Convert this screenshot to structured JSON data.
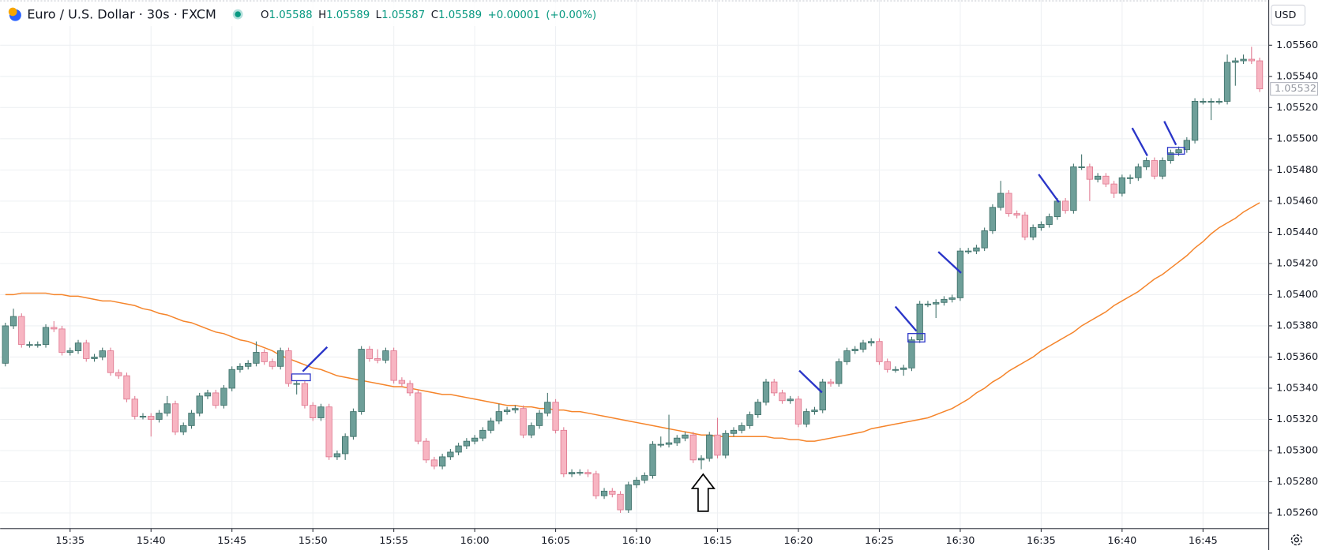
{
  "header": {
    "title": "Euro / U.S. Dollar · 30s · FXCM",
    "ohlc": [
      {
        "label": "O",
        "value": 1.05588
      },
      {
        "label": "H",
        "value": 1.05589
      },
      {
        "label": "L",
        "value": 1.05587
      },
      {
        "label": "C",
        "value": 1.05589
      }
    ],
    "change": "+0.00001",
    "change_pct": "(+0.00%)",
    "currency": "USD"
  },
  "chart_data": {
    "type": "candlestick",
    "up_color": "#6e9f99",
    "up_border": "#3f716a",
    "down_color": "#f7b5c2",
    "down_border": "#e07a91",
    "grid": true,
    "ylim": [
      1.0525,
      1.05589
    ],
    "yticks": [
      {
        "value": 1.0526,
        "label": "1.05260"
      },
      {
        "value": 1.0528,
        "label": "1.05280"
      },
      {
        "value": 1.053,
        "label": "1.05300"
      },
      {
        "value": 1.0532,
        "label": "1.05320"
      },
      {
        "value": 1.0534,
        "label": "1.05340"
      },
      {
        "value": 1.0536,
        "label": "1.05360"
      },
      {
        "value": 1.0538,
        "label": "1.05380"
      },
      {
        "value": 1.054,
        "label": "1.05400"
      },
      {
        "value": 1.0542,
        "label": "1.05420"
      },
      {
        "value": 1.0544,
        "label": "1.05440"
      },
      {
        "value": 1.0546,
        "label": "1.05460"
      },
      {
        "value": 1.0548,
        "label": "1.05480"
      },
      {
        "value": 1.055,
        "label": "1.05500"
      },
      {
        "value": 1.0552,
        "label": "1.05520"
      },
      {
        "value": 1.0554,
        "label": "1.05540"
      },
      {
        "value": 1.0556,
        "label": "1.05560"
      }
    ],
    "categories": [
      null,
      null,
      null,
      null,
      null,
      null,
      null,
      null,
      "15:35",
      null,
      null,
      null,
      null,
      null,
      null,
      null,
      null,
      null,
      "15:40",
      null,
      null,
      null,
      null,
      null,
      null,
      null,
      null,
      null,
      "15:45",
      null,
      null,
      null,
      null,
      null,
      null,
      null,
      null,
      null,
      "15:50",
      null,
      null,
      null,
      null,
      null,
      null,
      null,
      null,
      null,
      "15:55",
      null,
      null,
      null,
      null,
      null,
      null,
      null,
      null,
      null,
      "16:00",
      null,
      null,
      null,
      null,
      null,
      null,
      null,
      null,
      null,
      "16:05",
      null,
      null,
      null,
      null,
      null,
      null,
      null,
      null,
      null,
      "16:10",
      null,
      null,
      null,
      null,
      null,
      null,
      null,
      null,
      null,
      "16:15",
      null,
      null,
      null,
      null,
      null,
      null,
      null,
      null,
      null,
      "16:20",
      null,
      null,
      null,
      null,
      null,
      null,
      null,
      null,
      null,
      "16:25",
      null,
      null,
      null,
      null,
      null,
      null,
      null,
      null,
      null,
      "16:30",
      null,
      null,
      null,
      null,
      null,
      null,
      null,
      null,
      null,
      "16:35",
      null,
      null,
      null,
      null,
      null,
      null,
      null,
      null,
      null,
      "16:40",
      null,
      null,
      null,
      null,
      null,
      null,
      null,
      null,
      null,
      "16:45",
      null,
      null,
      null,
      null,
      null,
      null,
      null
    ],
    "ohlc": [
      [
        1.05356,
        1.05382,
        1.05354,
        1.0538
      ],
      [
        1.0538,
        1.05391,
        1.05378,
        1.05386
      ],
      [
        1.05386,
        1.05388,
        1.05366,
        1.05368
      ],
      [
        1.05368,
        1.0537,
        1.05366,
        1.05368
      ],
      [
        1.05368,
        1.0537,
        1.05366,
        1.05368
      ],
      [
        1.05368,
        1.05381,
        1.05366,
        1.05379
      ],
      [
        1.05379,
        1.05383,
        1.05376,
        1.05378
      ],
      [
        1.05378,
        1.0538,
        1.05361,
        1.05363
      ],
      [
        1.05363,
        1.05366,
        1.05361,
        1.05364
      ],
      [
        1.05364,
        1.05371,
        1.05362,
        1.05369
      ],
      [
        1.05369,
        1.05371,
        1.05357,
        1.05359
      ],
      [
        1.05359,
        1.05362,
        1.05357,
        1.0536
      ],
      [
        1.0536,
        1.05366,
        1.05358,
        1.05364
      ],
      [
        1.05364,
        1.05366,
        1.05348,
        1.0535
      ],
      [
        1.0535,
        1.05352,
        1.05346,
        1.05348
      ],
      [
        1.05348,
        1.0535,
        1.05331,
        1.05333
      ],
      [
        1.05333,
        1.05335,
        1.0532,
        1.05322
      ],
      [
        1.05322,
        1.05324,
        1.0532,
        1.05322
      ],
      [
        1.05322,
        1.05324,
        1.05309,
        1.0532
      ],
      [
        1.0532,
        1.05326,
        1.05318,
        1.05324
      ],
      [
        1.05324,
        1.05335,
        1.05322,
        1.0533
      ],
      [
        1.0533,
        1.05332,
        1.0531,
        1.05312
      ],
      [
        1.05312,
        1.05318,
        1.0531,
        1.05316
      ],
      [
        1.05316,
        1.05326,
        1.05314,
        1.05324
      ],
      [
        1.05324,
        1.05337,
        1.05322,
        1.05335
      ],
      [
        1.05335,
        1.05339,
        1.05333,
        1.05337
      ],
      [
        1.05337,
        1.05339,
        1.05327,
        1.05329
      ],
      [
        1.05329,
        1.05342,
        1.05327,
        1.0534
      ],
      [
        1.0534,
        1.05354,
        1.05338,
        1.05352
      ],
      [
        1.05352,
        1.05356,
        1.0535,
        1.05354
      ],
      [
        1.05354,
        1.05358,
        1.05352,
        1.05356
      ],
      [
        1.05356,
        1.0537,
        1.05354,
        1.05363
      ],
      [
        1.05363,
        1.05365,
        1.05355,
        1.05357
      ],
      [
        1.05357,
        1.05359,
        1.05352,
        1.05354
      ],
      [
        1.05354,
        1.05366,
        1.05352,
        1.05364
      ],
      [
        1.05364,
        1.05366,
        1.05341,
        1.05343
      ],
      [
        1.05343,
        1.05345,
        1.05336,
        1.05343
      ],
      [
        1.05343,
        1.05345,
        1.05327,
        1.05329
      ],
      [
        1.05329,
        1.05331,
        1.05319,
        1.05321
      ],
      [
        1.05321,
        1.0533,
        1.05319,
        1.05328
      ],
      [
        1.05328,
        1.0533,
        1.05294,
        1.05296
      ],
      [
        1.05296,
        1.053,
        1.05294,
        1.05298
      ],
      [
        1.05298,
        1.05311,
        1.05294,
        1.05309
      ],
      [
        1.05309,
        1.05327,
        1.05307,
        1.05325
      ],
      [
        1.05325,
        1.05367,
        1.05323,
        1.05365
      ],
      [
        1.05365,
        1.05367,
        1.05357,
        1.05359
      ],
      [
        1.05359,
        1.05365,
        1.05356,
        1.05358
      ],
      [
        1.05358,
        1.05366,
        1.05356,
        1.05364
      ],
      [
        1.05364,
        1.05366,
        1.05343,
        1.05345
      ],
      [
        1.05345,
        1.05347,
        1.05341,
        1.05343
      ],
      [
        1.05343,
        1.05345,
        1.05335,
        1.05337
      ],
      [
        1.05337,
        1.05339,
        1.05304,
        1.05306
      ],
      [
        1.05306,
        1.05308,
        1.05292,
        1.05294
      ],
      [
        1.05294,
        1.05296,
        1.05288,
        1.0529
      ],
      [
        1.0529,
        1.05298,
        1.05288,
        1.05296
      ],
      [
        1.05296,
        1.05301,
        1.05294,
        1.05299
      ],
      [
        1.05299,
        1.05305,
        1.05297,
        1.05303
      ],
      [
        1.05303,
        1.05308,
        1.05301,
        1.05306
      ],
      [
        1.05306,
        1.0531,
        1.05304,
        1.05308
      ],
      [
        1.05308,
        1.05315,
        1.05306,
        1.05313
      ],
      [
        1.05313,
        1.05321,
        1.05311,
        1.05319
      ],
      [
        1.05319,
        1.0533,
        1.05317,
        1.05325
      ],
      [
        1.05325,
        1.05328,
        1.05323,
        1.05326
      ],
      [
        1.05326,
        1.05329,
        1.05324,
        1.05327
      ],
      [
        1.05327,
        1.05329,
        1.05308,
        1.0531
      ],
      [
        1.0531,
        1.05318,
        1.05308,
        1.05316
      ],
      [
        1.05316,
        1.05326,
        1.05314,
        1.05324
      ],
      [
        1.05324,
        1.05337,
        1.05322,
        1.05331
      ],
      [
        1.05331,
        1.05333,
        1.05311,
        1.05313
      ],
      [
        1.05313,
        1.05315,
        1.05283,
        1.05285
      ],
      [
        1.05285,
        1.05288,
        1.05283,
        1.05286
      ],
      [
        1.05286,
        1.05288,
        1.05284,
        1.05286
      ],
      [
        1.05286,
        1.05288,
        1.05283,
        1.05285
      ],
      [
        1.05285,
        1.05287,
        1.05269,
        1.05271
      ],
      [
        1.05271,
        1.05276,
        1.05269,
        1.05274
      ],
      [
        1.05274,
        1.05276,
        1.0527,
        1.05272
      ],
      [
        1.05272,
        1.05274,
        1.0526,
        1.05262
      ],
      [
        1.05262,
        1.0528,
        1.0526,
        1.05278
      ],
      [
        1.05278,
        1.05283,
        1.05276,
        1.05281
      ],
      [
        1.05281,
        1.05286,
        1.05279,
        1.05284
      ],
      [
        1.05284,
        1.05306,
        1.05282,
        1.05304
      ],
      [
        1.05304,
        1.05309,
        1.05302,
        1.05304
      ],
      [
        1.05304,
        1.05323,
        1.05302,
        1.05305
      ],
      [
        1.05305,
        1.0531,
        1.05303,
        1.05308
      ],
      [
        1.05308,
        1.05312,
        1.05306,
        1.0531
      ],
      [
        1.0531,
        1.05312,
        1.05292,
        1.05294
      ],
      [
        1.05294,
        1.05297,
        1.05288,
        1.05295
      ],
      [
        1.05295,
        1.05312,
        1.05293,
        1.0531
      ],
      [
        1.0531,
        1.05321,
        1.05295,
        1.05297
      ],
      [
        1.05297,
        1.05313,
        1.05295,
        1.05311
      ],
      [
        1.05311,
        1.05315,
        1.05309,
        1.05313
      ],
      [
        1.05313,
        1.05318,
        1.05311,
        1.05316
      ],
      [
        1.05316,
        1.05325,
        1.05314,
        1.05323
      ],
      [
        1.05323,
        1.05333,
        1.05321,
        1.05331
      ],
      [
        1.05331,
        1.05346,
        1.05329,
        1.05344
      ],
      [
        1.05344,
        1.05346,
        1.05335,
        1.05337
      ],
      [
        1.05337,
        1.05339,
        1.0533,
        1.05332
      ],
      [
        1.05332,
        1.05335,
        1.0533,
        1.05333
      ],
      [
        1.05333,
        1.05335,
        1.05315,
        1.05317
      ],
      [
        1.05317,
        1.05327,
        1.05315,
        1.05325
      ],
      [
        1.05325,
        1.05328,
        1.05323,
        1.05326
      ],
      [
        1.05326,
        1.05346,
        1.05324,
        1.05344
      ],
      [
        1.05344,
        1.05346,
        1.05341,
        1.05343
      ],
      [
        1.05343,
        1.05359,
        1.05341,
        1.05357
      ],
      [
        1.05357,
        1.05366,
        1.05355,
        1.05364
      ],
      [
        1.05364,
        1.05367,
        1.05362,
        1.05365
      ],
      [
        1.05365,
        1.05371,
        1.05363,
        1.05369
      ],
      [
        1.05369,
        1.05372,
        1.05367,
        1.0537
      ],
      [
        1.0537,
        1.05372,
        1.05355,
        1.05357
      ],
      [
        1.05357,
        1.05359,
        1.0535,
        1.05352
      ],
      [
        1.05352,
        1.05354,
        1.0535,
        1.05352
      ],
      [
        1.05352,
        1.05355,
        1.05348,
        1.05353
      ],
      [
        1.05353,
        1.05373,
        1.05351,
        1.05371
      ],
      [
        1.05371,
        1.05396,
        1.05369,
        1.05394
      ],
      [
        1.05394,
        1.05396,
        1.05392,
        1.05394
      ],
      [
        1.05394,
        1.05397,
        1.05385,
        1.05395
      ],
      [
        1.05395,
        1.05399,
        1.05393,
        1.05397
      ],
      [
        1.05397,
        1.054,
        1.05395,
        1.05398
      ],
      [
        1.05398,
        1.0543,
        1.05396,
        1.05428
      ],
      [
        1.05428,
        1.0543,
        1.05426,
        1.05428
      ],
      [
        1.05428,
        1.05432,
        1.05426,
        1.0543
      ],
      [
        1.0543,
        1.05443,
        1.05428,
        1.05441
      ],
      [
        1.05441,
        1.05458,
        1.05439,
        1.05456
      ],
      [
        1.05456,
        1.05473,
        1.05454,
        1.05465
      ],
      [
        1.05465,
        1.05467,
        1.0545,
        1.05452
      ],
      [
        1.05452,
        1.05454,
        1.05449,
        1.05451
      ],
      [
        1.05451,
        1.05453,
        1.05435,
        1.05437
      ],
      [
        1.05437,
        1.05445,
        1.05435,
        1.05443
      ],
      [
        1.05443,
        1.05447,
        1.05441,
        1.05445
      ],
      [
        1.05445,
        1.05452,
        1.05443,
        1.0545
      ],
      [
        1.0545,
        1.05462,
        1.05448,
        1.0546
      ],
      [
        1.0546,
        1.05462,
        1.05452,
        1.05454
      ],
      [
        1.05454,
        1.05484,
        1.05452,
        1.05482
      ],
      [
        1.05482,
        1.0549,
        1.0548,
        1.05482
      ],
      [
        1.05482,
        1.05484,
        1.0546,
        1.05474
      ],
      [
        1.05474,
        1.05478,
        1.05472,
        1.05476
      ],
      [
        1.05476,
        1.05478,
        1.05469,
        1.05471
      ],
      [
        1.05471,
        1.05473,
        1.05462,
        1.05465
      ],
      [
        1.05465,
        1.05477,
        1.05463,
        1.05475
      ],
      [
        1.05475,
        1.05477,
        1.05471,
        1.05475
      ],
      [
        1.05475,
        1.05484,
        1.05473,
        1.05482
      ],
      [
        1.05482,
        1.05488,
        1.0548,
        1.05486
      ],
      [
        1.05486,
        1.05488,
        1.05474,
        1.05476
      ],
      [
        1.05476,
        1.05488,
        1.05474,
        1.05486
      ],
      [
        1.05486,
        1.05493,
        1.05484,
        1.05491
      ],
      [
        1.05491,
        1.05495,
        1.05489,
        1.05493
      ],
      [
        1.05493,
        1.05501,
        1.05491,
        1.05499
      ],
      [
        1.05499,
        1.05526,
        1.05497,
        1.05524
      ],
      [
        1.05524,
        1.05526,
        1.05522,
        1.05524
      ],
      [
        1.05524,
        1.05526,
        1.05512,
        1.05524
      ],
      [
        1.05524,
        1.05526,
        1.05522,
        1.05524
      ],
      [
        1.05524,
        1.05554,
        1.05522,
        1.05549
      ],
      [
        1.05549,
        1.05552,
        1.05534,
        1.0555
      ],
      [
        1.0555,
        1.05554,
        1.05548,
        1.05551
      ],
      [
        1.05551,
        1.05559,
        1.05548,
        1.0555
      ],
      [
        1.0555,
        1.05552,
        1.0553,
        1.05532
      ]
    ],
    "ma": {
      "color": "#f5842a",
      "values": [
        1.054,
        1.054,
        1.05401,
        1.05401,
        1.05401,
        1.05401,
        1.054,
        1.054,
        1.05399,
        1.05399,
        1.05398,
        1.05397,
        1.05396,
        1.05396,
        1.05395,
        1.05394,
        1.05393,
        1.05391,
        1.0539,
        1.05388,
        1.05387,
        1.05385,
        1.05383,
        1.05382,
        1.0538,
        1.05378,
        1.05376,
        1.05375,
        1.05373,
        1.05371,
        1.0537,
        1.05368,
        1.05366,
        1.05364,
        1.05361,
        1.05359,
        1.05357,
        1.05355,
        1.05353,
        1.05352,
        1.0535,
        1.05348,
        1.05347,
        1.05346,
        1.05345,
        1.05344,
        1.05343,
        1.05342,
        1.05341,
        1.05341,
        1.0534,
        1.05339,
        1.05338,
        1.05337,
        1.05336,
        1.05336,
        1.05335,
        1.05334,
        1.05333,
        1.05332,
        1.05331,
        1.0533,
        1.05329,
        1.05329,
        1.05328,
        1.05328,
        1.05327,
        1.05327,
        1.05326,
        1.05326,
        1.05325,
        1.05325,
        1.05324,
        1.05323,
        1.05322,
        1.05321,
        1.0532,
        1.05319,
        1.05318,
        1.05317,
        1.05316,
        1.05315,
        1.05314,
        1.05313,
        1.05312,
        1.05311,
        1.0531,
        1.0531,
        1.05309,
        1.05309,
        1.05309,
        1.05309,
        1.05309,
        1.05309,
        1.05309,
        1.05308,
        1.05308,
        1.05307,
        1.05307,
        1.05306,
        1.05306,
        1.05307,
        1.05308,
        1.05309,
        1.0531,
        1.05311,
        1.05312,
        1.05314,
        1.05315,
        1.05316,
        1.05317,
        1.05318,
        1.05319,
        1.0532,
        1.05321,
        1.05323,
        1.05325,
        1.05327,
        1.0533,
        1.05333,
        1.05337,
        1.0534,
        1.05344,
        1.05347,
        1.05351,
        1.05354,
        1.05357,
        1.0536,
        1.05364,
        1.05367,
        1.0537,
        1.05373,
        1.05376,
        1.0538,
        1.05383,
        1.05386,
        1.05389,
        1.05393,
        1.05396,
        1.05399,
        1.05402,
        1.05406,
        1.0541,
        1.05413,
        1.05417,
        1.05421,
        1.05425,
        1.0543,
        1.05434,
        1.05439,
        1.05443,
        1.05446,
        1.05449,
        1.05453,
        1.05456,
        1.05459
      ]
    }
  }
}
